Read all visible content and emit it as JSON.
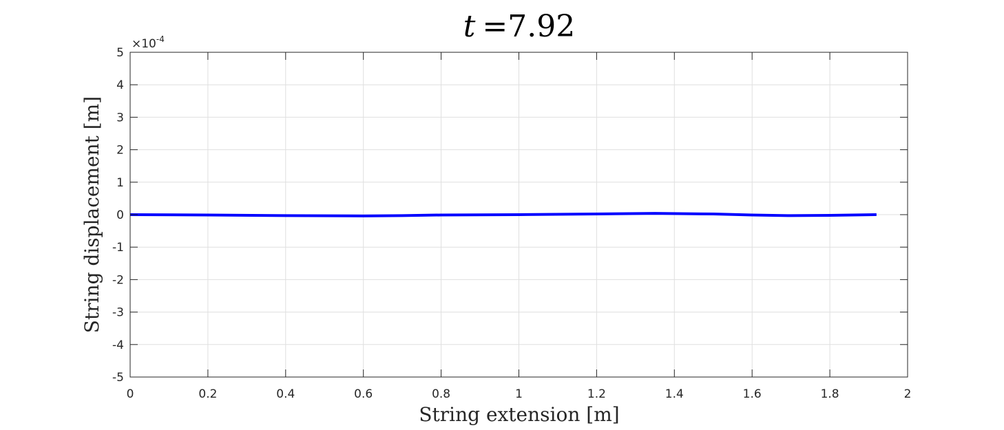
{
  "chart_data": {
    "type": "line",
    "title": {
      "variable": "t",
      "equals": "=",
      "value": "7.92"
    },
    "xlabel": "String extension [m]",
    "ylabel": "String displacement [m]",
    "y_exponent": {
      "base": "×10",
      "power": "-4"
    },
    "xlim": [
      0,
      2
    ],
    "ylim": [
      -5,
      5
    ],
    "x_ticks": [
      0,
      0.2,
      0.4,
      0.6,
      0.8,
      1,
      1.2,
      1.4,
      1.6,
      1.8,
      2
    ],
    "x_tick_labels": [
      "0",
      "0.2",
      "0.4",
      "0.6",
      "0.8",
      "1",
      "1.2",
      "1.4",
      "1.6",
      "1.8",
      "2"
    ],
    "y_ticks": [
      -5,
      -4,
      -3,
      -2,
      -1,
      0,
      1,
      2,
      3,
      4,
      5
    ],
    "y_tick_labels": [
      "-5",
      "-4",
      "-3",
      "-2",
      "-1",
      "0",
      "1",
      "2",
      "3",
      "4",
      "5"
    ],
    "grid": true,
    "series": [
      {
        "color": "#0000ff",
        "x": [
          0,
          0.2,
          0.4,
          0.6,
          0.7,
          0.8,
          1.0,
          1.2,
          1.35,
          1.5,
          1.6,
          1.7,
          1.8,
          1.92
        ],
        "y": [
          0,
          -0.01,
          -0.03,
          -0.04,
          -0.03,
          -0.01,
          0.0,
          0.02,
          0.04,
          0.02,
          -0.01,
          -0.03,
          -0.02,
          0
        ]
      }
    ]
  }
}
